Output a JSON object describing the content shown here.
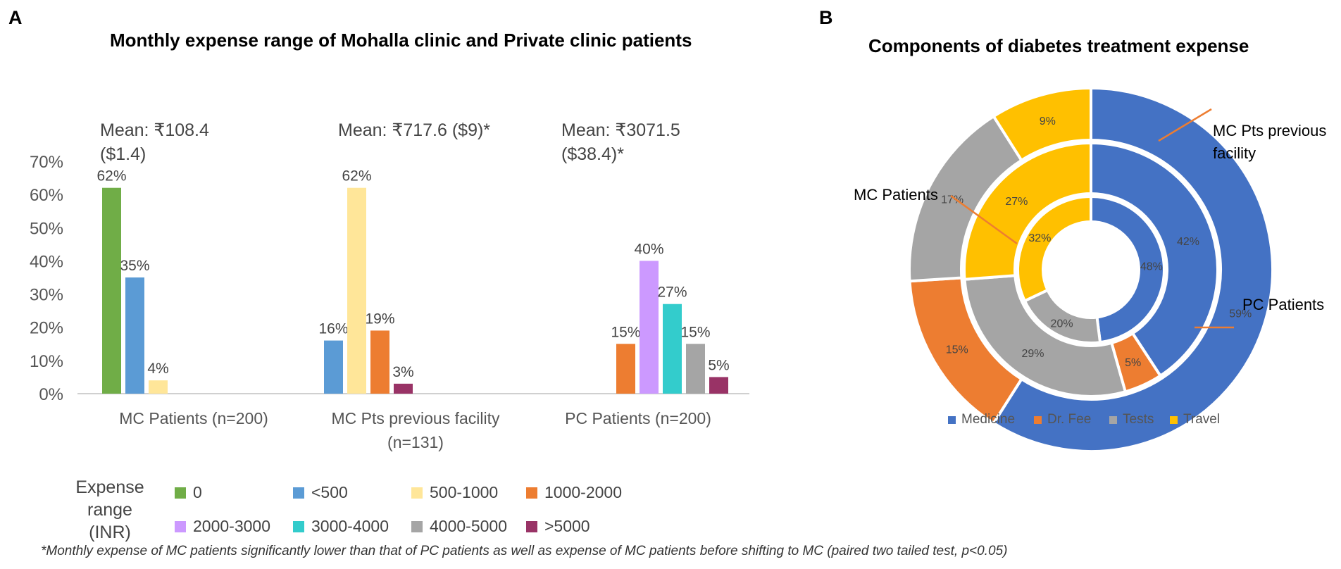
{
  "panelA": {
    "letter": "A",
    "title": "Monthly expense range of Mohalla clinic and Private clinic patients",
    "means": [
      "Mean: ₹108.4 ($1.4)",
      "Mean: ₹717.6 ($9)*",
      "Mean: ₹3071.5 ($38.4)*"
    ],
    "legend_title": "Expense range (INR)"
  },
  "panelB": {
    "letter": "B",
    "title": "Components of diabetes treatment expense",
    "callouts": {
      "outer": "MC Pts previous facility",
      "inner": "MC Patients",
      "pc": "PC Patients"
    }
  },
  "footnote": "*Monthly expense of MC patients significantly lower than that of PC patients as well as expense of MC patients before shifting to MC (paired two tailed test, p<0.05)",
  "chart_data": [
    {
      "type": "bar",
      "title": "Monthly expense range of Mohalla clinic and Private clinic patients",
      "categories": [
        "MC Patients (n=200)",
        "MC Pts previous facility (n=131)",
        "PC Patients (n=200)"
      ],
      "ylim": [
        0,
        70
      ],
      "yticks": [
        "0%",
        "10%",
        "20%",
        "30%",
        "40%",
        "50%",
        "60%",
        "70%"
      ],
      "legend_position": "bottom",
      "series": [
        {
          "name": "0",
          "color": "#70AD47",
          "values": [
            62,
            null,
            null
          ],
          "labels": [
            "62%",
            "",
            ""
          ]
        },
        {
          "name": "<500",
          "color": "#5B9BD5",
          "values": [
            35,
            16,
            null
          ],
          "labels": [
            "35%",
            "16%",
            ""
          ]
        },
        {
          "name": "500-1000",
          "color": "#FFE699",
          "values": [
            4,
            62,
            null
          ],
          "labels": [
            "4%",
            "62%",
            ""
          ]
        },
        {
          "name": "1000-2000",
          "color": "#ED7D31",
          "values": [
            null,
            19,
            15
          ],
          "labels": [
            "",
            "19%",
            "15%"
          ]
        },
        {
          "name": "2000-3000",
          "color": "#CC99FF",
          "values": [
            null,
            null,
            40
          ],
          "labels": [
            "",
            "",
            "40%"
          ]
        },
        {
          "name": "3000-4000",
          "color": "#33CCCC",
          "values": [
            null,
            null,
            27
          ],
          "labels": [
            "",
            "",
            "27%"
          ]
        },
        {
          "name": "4000-5000",
          "color": "#A5A5A5",
          "values": [
            null,
            null,
            15
          ],
          "labels": [
            "",
            "",
            "15%"
          ]
        },
        {
          "name": ">5000",
          "color": "#993366",
          "values": [
            null,
            3,
            5
          ],
          "labels": [
            "",
            "3%",
            "5%"
          ]
        }
      ]
    },
    {
      "type": "pie",
      "subtype": "donut",
      "title": "Components of diabetes treatment expense",
      "categories": [
        "Medicine",
        "Dr. Fee",
        "Tests",
        "Travel"
      ],
      "colors": [
        "#4472C4",
        "#ED7D31",
        "#A5A5A5",
        "#FFC000"
      ],
      "legend_position": "bottom",
      "rings": [
        {
          "name": "PC Patients",
          "values": [
            59,
            15,
            17,
            9
          ],
          "labels": [
            "59%",
            "15%",
            "17%",
            "9%"
          ]
        },
        {
          "name": "MC Pts previous facility",
          "values": [
            42,
            5,
            29,
            27
          ],
          "labels": [
            "42%",
            "5%",
            "29%",
            "27%"
          ]
        },
        {
          "name": "MC Patients",
          "values": [
            48,
            0,
            20,
            32
          ],
          "labels": [
            "48%",
            "",
            "20%",
            "32%"
          ]
        }
      ]
    }
  ]
}
